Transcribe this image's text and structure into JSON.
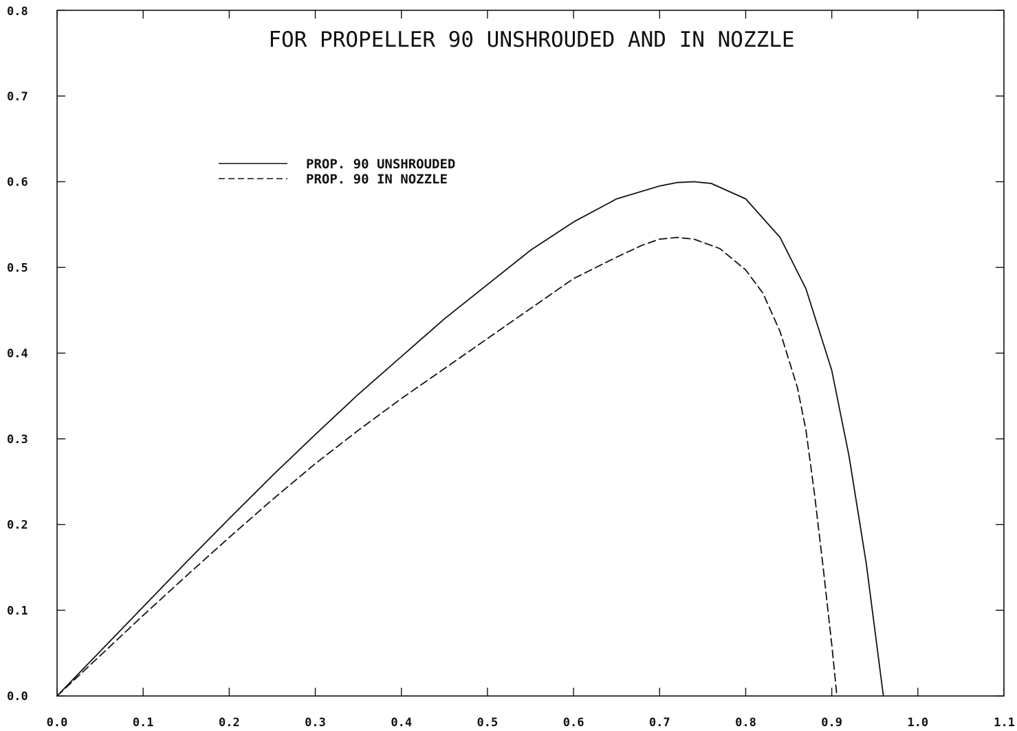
{
  "chart_data": {
    "type": "line",
    "title": "FOR PROPELLER 90 UNSHROUDED AND IN NOZZLE",
    "xlabel": "",
    "ylabel": "",
    "xlim": [
      0.0,
      1.1
    ],
    "ylim": [
      0.0,
      0.8
    ],
    "x_ticks": [
      "0.0",
      "0.1",
      "0.2",
      "0.3",
      "0.4",
      "0.5",
      "0.6",
      "0.7",
      "0.8",
      "0.9",
      "1.0",
      "1.1"
    ],
    "y_ticks": [
      "0.0",
      "0.1",
      "0.2",
      "0.3",
      "0.4",
      "0.5",
      "0.6",
      "0.7",
      "0.8"
    ],
    "grid": false,
    "legend_position": "upper-left",
    "series": [
      {
        "name": "PROP. 90 UNSHROUDED",
        "style": "solid",
        "color": "#111111",
        "x": [
          0.0,
          0.05,
          0.1,
          0.15,
          0.2,
          0.25,
          0.3,
          0.35,
          0.4,
          0.45,
          0.5,
          0.55,
          0.6,
          0.65,
          0.7,
          0.72,
          0.74,
          0.76,
          0.8,
          0.84,
          0.87,
          0.9,
          0.92,
          0.94,
          0.96
        ],
        "y": [
          0.0,
          0.052,
          0.104,
          0.156,
          0.207,
          0.257,
          0.305,
          0.352,
          0.396,
          0.44,
          0.48,
          0.52,
          0.553,
          0.58,
          0.595,
          0.599,
          0.6,
          0.598,
          0.58,
          0.535,
          0.475,
          0.38,
          0.28,
          0.155,
          0.0
        ]
      },
      {
        "name": "PROP. 90 IN NOZZLE",
        "style": "dashed",
        "color": "#111111",
        "x": [
          0.0,
          0.05,
          0.1,
          0.15,
          0.2,
          0.25,
          0.3,
          0.35,
          0.4,
          0.45,
          0.5,
          0.55,
          0.6,
          0.65,
          0.68,
          0.7,
          0.72,
          0.74,
          0.77,
          0.8,
          0.82,
          0.84,
          0.86,
          0.87,
          0.88,
          0.89,
          0.9,
          0.906
        ],
        "y": [
          0.0,
          0.047,
          0.094,
          0.14,
          0.185,
          0.229,
          0.271,
          0.31,
          0.347,
          0.382,
          0.417,
          0.452,
          0.487,
          0.512,
          0.526,
          0.533,
          0.535,
          0.533,
          0.522,
          0.497,
          0.47,
          0.425,
          0.36,
          0.31,
          0.235,
          0.15,
          0.06,
          0.0
        ]
      }
    ]
  }
}
